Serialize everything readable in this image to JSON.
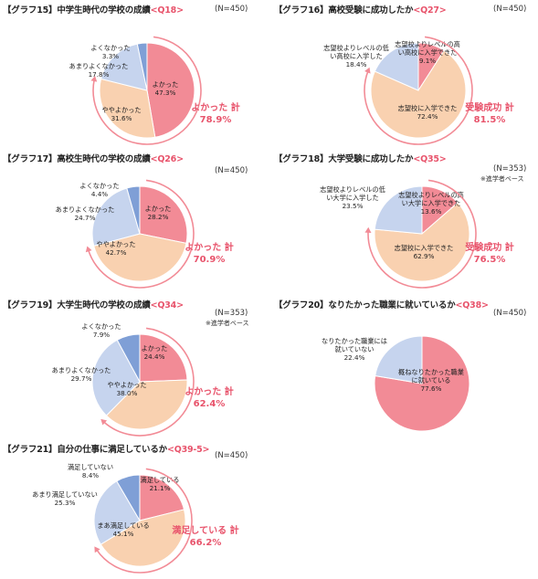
{
  "colors": {
    "pink": "#f28b96",
    "peach": "#f9d1b0",
    "lightblue": "#c6d4ee",
    "blue": "#7f9fd6",
    "accent": "#e8536b"
  },
  "chart_data": [
    {
      "type": "pie",
      "title": "【グラフ15】中学生時代の学校の成績",
      "question": "<Q18>",
      "n_label": "(N=450)",
      "note": "",
      "slices": [
        {
          "label": "よかった",
          "value": 47.3,
          "value_label": "47.3%",
          "color": "#f28b96"
        },
        {
          "label": "ややよかった",
          "value": 31.6,
          "value_label": "31.6%",
          "color": "#f9d1b0"
        },
        {
          "label": "あまりよくなかった",
          "value": 17.8,
          "value_label": "17.8%",
          "color": "#c6d4ee"
        },
        {
          "label": "よくなかった",
          "value": 3.3,
          "value_label": "3.3%",
          "color": "#7f9fd6"
        }
      ],
      "total_label": "よかった 計",
      "total_value": "78.9%",
      "arc_slices": 2
    },
    {
      "type": "pie",
      "title": "【グラフ16】高校受験に成功したか",
      "question": "<Q27>",
      "n_label": "(N=450)",
      "note": "",
      "slices": [
        {
          "label": "志望校よりレベルの高い高校に入学できた",
          "value": 9.1,
          "value_label": "9.1%",
          "color": "#f28b96"
        },
        {
          "label": "志望校に入学できた",
          "value": 72.4,
          "value_label": "72.4%",
          "color": "#f9d1b0"
        },
        {
          "label": "志望校よりレベルの低い高校に入学した",
          "value": 18.4,
          "value_label": "18.4%",
          "color": "#c6d4ee"
        }
      ],
      "total_label": "受験成功 計",
      "total_value": "81.5%",
      "arc_slices": 2
    },
    {
      "type": "pie",
      "title": "【グラフ17】高校生時代の学校の成績",
      "question": "<Q26>",
      "n_label": "(N=450)",
      "note": "",
      "slices": [
        {
          "label": "よかった",
          "value": 28.2,
          "value_label": "28.2%",
          "color": "#f28b96"
        },
        {
          "label": "ややよかった",
          "value": 42.7,
          "value_label": "42.7%",
          "color": "#f9d1b0"
        },
        {
          "label": "あまりよくなかった",
          "value": 24.7,
          "value_label": "24.7%",
          "color": "#c6d4ee"
        },
        {
          "label": "よくなかった",
          "value": 4.4,
          "value_label": "4.4%",
          "color": "#7f9fd6"
        }
      ],
      "total_label": "よかった 計",
      "total_value": "70.9%",
      "arc_slices": 2
    },
    {
      "type": "pie",
      "title": "【グラフ18】大学受験に成功したか",
      "question": "<Q35>",
      "n_label": "(N=353)",
      "note": "※進学者ベース",
      "slices": [
        {
          "label": "志望校よりレベルの高い大学に入学できた",
          "value": 13.6,
          "value_label": "13.6%",
          "color": "#f28b96"
        },
        {
          "label": "志望校に入学できた",
          "value": 62.9,
          "value_label": "62.9%",
          "color": "#f9d1b0"
        },
        {
          "label": "志望校よりレベルの低い大学に入学した",
          "value": 23.5,
          "value_label": "23.5%",
          "color": "#c6d4ee"
        }
      ],
      "total_label": "受験成功 計",
      "total_value": "76.5%",
      "arc_slices": 2
    },
    {
      "type": "pie",
      "title": "【グラフ19】大学生時代の学校の成績",
      "question": "<Q34>",
      "n_label": "(N=353)",
      "note": "※進学者ベース",
      "slices": [
        {
          "label": "よかった",
          "value": 24.4,
          "value_label": "24.4%",
          "color": "#f28b96"
        },
        {
          "label": "ややよかった",
          "value": 38.0,
          "value_label": "38.0%",
          "color": "#f9d1b0"
        },
        {
          "label": "あまりよくなかった",
          "value": 29.7,
          "value_label": "29.7%",
          "color": "#c6d4ee"
        },
        {
          "label": "よくなかった",
          "value": 7.9,
          "value_label": "7.9%",
          "color": "#7f9fd6"
        }
      ],
      "total_label": "よかった 計",
      "total_value": "62.4%",
      "arc_slices": 2
    },
    {
      "type": "pie",
      "title": "【グラフ20】なりたかった職業に就いているか",
      "question": "<Q38>",
      "n_label": "(N=450)",
      "note": "",
      "slices": [
        {
          "label": "概ねなりたかった職業に就いている",
          "value": 77.6,
          "value_label": "77.6%",
          "color": "#f28b96"
        },
        {
          "label": "なりたかった職業には就いていない",
          "value": 22.4,
          "value_label": "22.4%",
          "color": "#c6d4ee"
        }
      ],
      "total_label": "",
      "total_value": "",
      "arc_slices": 0
    },
    {
      "type": "pie",
      "title": "【グラフ21】自分の仕事に満足しているか",
      "question": "<Q39-5>",
      "n_label": "(N=450)",
      "note": "",
      "slices": [
        {
          "label": "満足している",
          "value": 21.1,
          "value_label": "21.1%",
          "color": "#f28b96"
        },
        {
          "label": "まあ満足している",
          "value": 45.1,
          "value_label": "45.1%",
          "color": "#f9d1b0"
        },
        {
          "label": "あまり満足していない",
          "value": 25.3,
          "value_label": "25.3%",
          "color": "#c6d4ee"
        },
        {
          "label": "満足していない",
          "value": 8.4,
          "value_label": "8.4%",
          "color": "#7f9fd6"
        }
      ],
      "total_label": "満足している 計",
      "total_value": "66.2%",
      "arc_slices": 2
    }
  ]
}
